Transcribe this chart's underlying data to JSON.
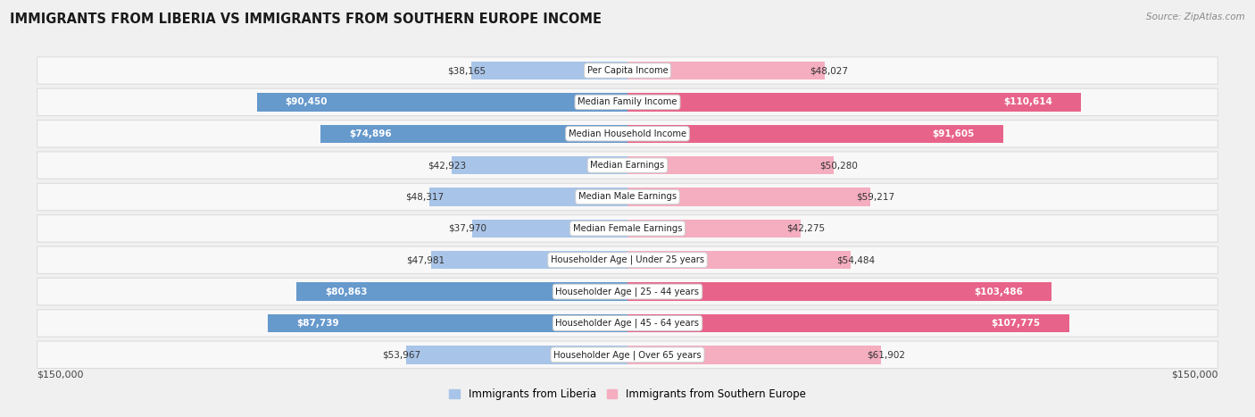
{
  "title": "IMMIGRANTS FROM LIBERIA VS IMMIGRANTS FROM SOUTHERN EUROPE INCOME",
  "source": "Source: ZipAtlas.com",
  "categories": [
    "Per Capita Income",
    "Median Family Income",
    "Median Household Income",
    "Median Earnings",
    "Median Male Earnings",
    "Median Female Earnings",
    "Householder Age | Under 25 years",
    "Householder Age | 25 - 44 years",
    "Householder Age | 45 - 64 years",
    "Householder Age | Over 65 years"
  ],
  "liberia_values": [
    38165,
    90450,
    74896,
    42923,
    48317,
    37970,
    47981,
    80863,
    87739,
    53967
  ],
  "southern_europe_values": [
    48027,
    110614,
    91605,
    50280,
    59217,
    42275,
    54484,
    103486,
    107775,
    61902
  ],
  "liberia_labels": [
    "$38,165",
    "$90,450",
    "$74,896",
    "$42,923",
    "$48,317",
    "$37,970",
    "$47,981",
    "$80,863",
    "$87,739",
    "$53,967"
  ],
  "southern_europe_labels": [
    "$48,027",
    "$110,614",
    "$91,605",
    "$50,280",
    "$59,217",
    "$42,275",
    "$54,484",
    "$103,486",
    "$107,775",
    "$61,902"
  ],
  "liberia_color_light": "#a8c4e8",
  "liberia_color_dark": "#6699cc",
  "southern_europe_color_light": "#f5adc0",
  "southern_europe_color_dark": "#e8638a",
  "max_value": 150000,
  "legend_liberia": "Immigrants from Liberia",
  "legend_southern": "Immigrants from Southern Europe",
  "background_color": "#f0f0f0",
  "row_bg_color": "#f8f8f8",
  "row_edge_color": "#dddddd",
  "axis_label_left": "$150,000",
  "axis_label_right": "$150,000",
  "liberia_large_threshold": 60000,
  "southern_large_threshold": 80000
}
